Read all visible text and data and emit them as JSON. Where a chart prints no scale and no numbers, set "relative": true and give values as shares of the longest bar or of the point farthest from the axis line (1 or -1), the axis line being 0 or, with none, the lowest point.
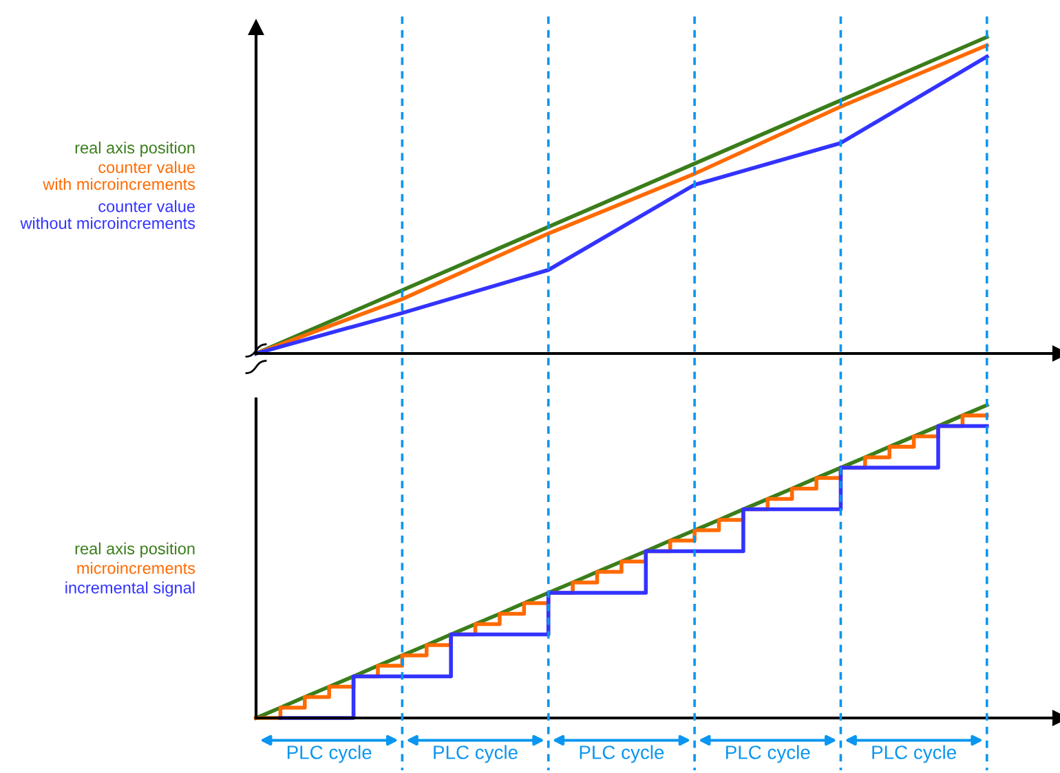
{
  "chart_data": [
    {
      "type": "line",
      "relative": true,
      "grid": "x",
      "categories": [
        null,
        null,
        null,
        null,
        null,
        null
      ],
      "series": [
        {
          "name": "real axis position",
          "color": "#3a7d1a",
          "values": [
            0,
            0.2,
            0.4,
            0.6,
            0.8,
            1
          ]
        },
        {
          "name": "counter value\nwith microincrements",
          "color": "#ff6a00",
          "values": [
            0,
            0.172,
            0.379,
            0.568,
            0.78,
            0.974
          ]
        },
        {
          "name": "counter value\nwithout microincrements",
          "color": "#3333ff",
          "values": [
            0,
            0.128,
            0.264,
            0.533,
            0.665,
            0.938
          ]
        }
      ]
    },
    {
      "type": "step",
      "relative": true,
      "categories": [
        null,
        null,
        null,
        null,
        null,
        null,
        null,
        null,
        null,
        null,
        null,
        null,
        null,
        null,
        null,
        null,
        null,
        null,
        null,
        null,
        null,
        null,
        null,
        null,
        null,
        null,
        null,
        null,
        null,
        null,
        null
      ],
      "annotations": [
        "PLC cycle",
        "PLC cycle",
        "PLC cycle",
        "PLC cycle",
        "PLC cycle"
      ],
      "series": [
        {
          "name": "real axis position",
          "type": "line",
          "color": "#3a7d1a",
          "values": [
            0,
            0.033,
            0.067,
            0.1,
            0.133,
            0.167,
            0.2,
            0.233,
            0.267,
            0.3,
            0.333,
            0.367,
            0.4,
            0.433,
            0.467,
            0.5,
            0.533,
            0.567,
            0.6,
            0.633,
            0.667,
            0.7,
            0.733,
            0.767,
            0.8,
            0.833,
            0.867,
            0.9,
            0.933,
            0.967,
            1
          ]
        },
        {
          "name": "microincrements",
          "color": "#ff6a00",
          "values": [
            0,
            0.033,
            0.067,
            0.1,
            0.133,
            0.167,
            0.2,
            0.233,
            0.267,
            0.3,
            0.333,
            0.367,
            0.4,
            0.433,
            0.467,
            0.5,
            0.533,
            0.567,
            0.6,
            0.633,
            0.667,
            0.7,
            0.733,
            0.767,
            0.8,
            0.833,
            0.867,
            0.9,
            0.933,
            0.967,
            0.967
          ]
        },
        {
          "name": "incremental signal",
          "color": "#3333ff",
          "values": [
            null,
            0,
            0,
            0,
            0.133,
            0.133,
            0.133,
            0.133,
            0.267,
            0.267,
            0.267,
            0.267,
            0.4,
            0.4,
            0.4,
            0.4,
            0.533,
            0.533,
            0.533,
            0.533,
            0.667,
            0.667,
            0.667,
            0.667,
            0.8,
            0.8,
            0.8,
            0.8,
            0.933,
            0.933,
            0.933
          ]
        }
      ]
    }
  ]
}
